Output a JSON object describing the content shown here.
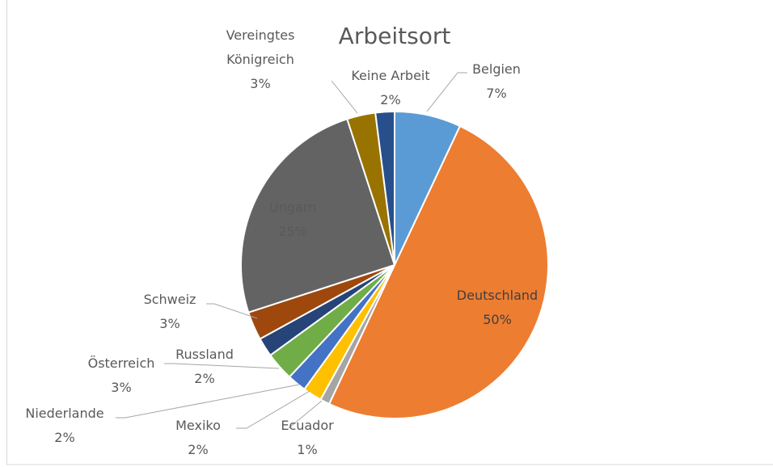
{
  "chart_data": {
    "type": "pie",
    "title": "Arbeitsort",
    "categories": [
      "Belgien",
      "Deutschland",
      "Ecuador",
      "Mexiko",
      "Niederlande",
      "Österreich",
      "Russland",
      "Schweiz",
      "Ungarn",
      "Vereingtes Königreich",
      "Keine Arbeit"
    ],
    "values": [
      7,
      50,
      1,
      2,
      2,
      3,
      2,
      3,
      25,
      3,
      2
    ],
    "value_labels": [
      "7%",
      "50%",
      "1%",
      "2%",
      "2%",
      "3%",
      "2%",
      "3%",
      "25%",
      "3%",
      "2%"
    ],
    "colors": [
      "#5b9bd5",
      "#ed7d31",
      "#a5a5a5",
      "#ffc000",
      "#4472c4",
      "#70ad47",
      "#264478",
      "#9e480e",
      "#636363",
      "#997300",
      "#264f8c"
    ]
  }
}
